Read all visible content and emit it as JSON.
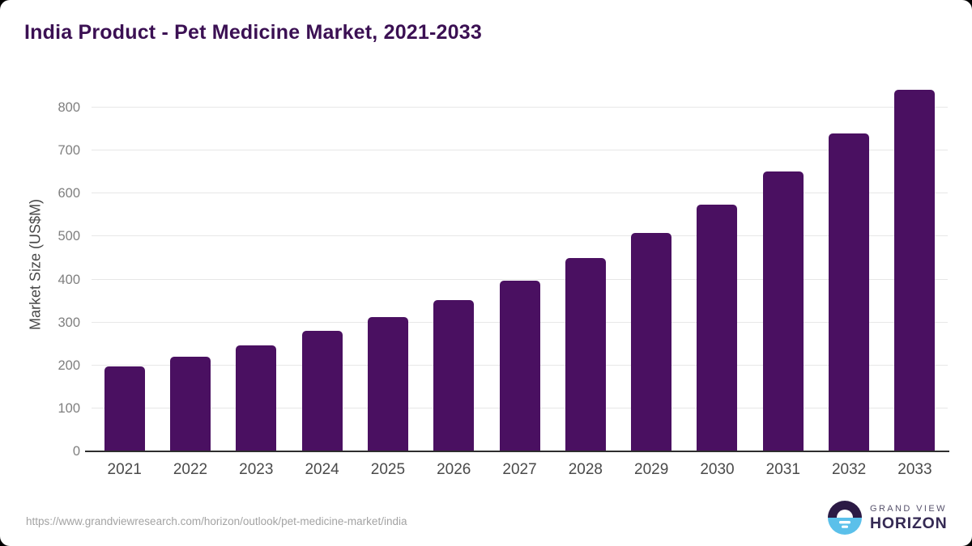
{
  "page": {
    "title": "India Product - Pet Medicine Market, 2021-2033",
    "title_color": "#3b1053",
    "background_color": "#ffffff"
  },
  "chart_data": {
    "type": "bar",
    "title": "India Product - Pet Medicine Market, 2021-2033",
    "categories": [
      "2021",
      "2022",
      "2023",
      "2024",
      "2025",
      "2026",
      "2027",
      "2028",
      "2029",
      "2030",
      "2031",
      "2032",
      "2033"
    ],
    "values": [
      198,
      221,
      246,
      280,
      313,
      352,
      397,
      450,
      508,
      574,
      652,
      741,
      841
    ],
    "xlabel": "",
    "ylabel": "Market Size (US$M)",
    "yticks": [
      0,
      100,
      200,
      300,
      400,
      500,
      600,
      700,
      800
    ],
    "ylim": [
      0,
      870
    ],
    "grid": "horizontal",
    "legend": "none",
    "bar_color": "#4a1061",
    "gridline_color": "#e7e7e7",
    "axis_line_color": "#2e2e2e"
  },
  "footer": {
    "source_url": "https://www.grandviewresearch.com/horizon/outlook/pet-medicine-market/india",
    "logo": {
      "top_text": "GRAND VIEW",
      "bottom_text": "HORIZON",
      "mark_top_color": "#2c1a45",
      "mark_bottom_color": "#5bc0ea"
    }
  }
}
